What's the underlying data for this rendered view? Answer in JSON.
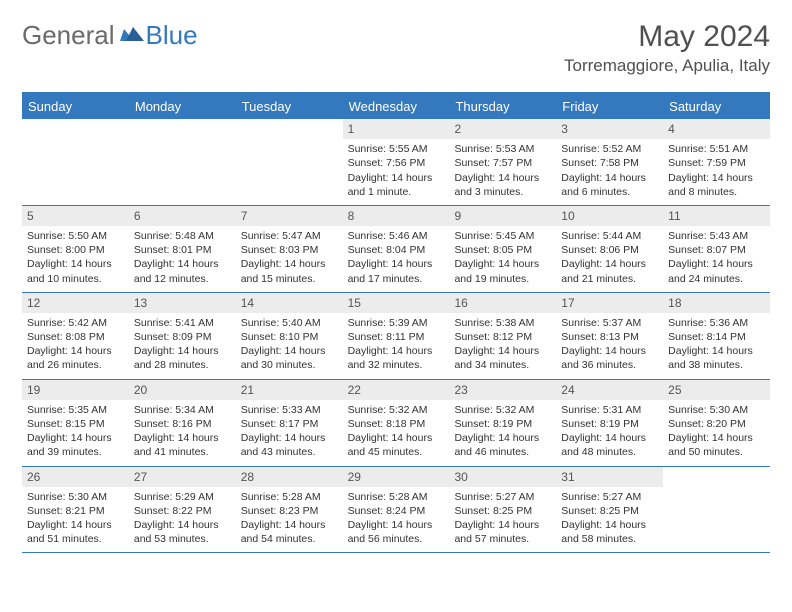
{
  "logo": {
    "general": "General",
    "blue": "Blue"
  },
  "title": "May 2024",
  "location": "Torremaggiore, Apulia, Italy",
  "colors": {
    "accent": "#3478bd",
    "header_text": "#ffffff",
    "day_num_bg": "#ececec",
    "text_gray": "#505050",
    "logo_gray": "#6a6a6a"
  },
  "day_headers": [
    "Sunday",
    "Monday",
    "Tuesday",
    "Wednesday",
    "Thursday",
    "Friday",
    "Saturday"
  ],
  "weeks": [
    [
      {
        "empty": true
      },
      {
        "empty": true
      },
      {
        "empty": true
      },
      {
        "num": "1",
        "sunrise": "Sunrise: 5:55 AM",
        "sunset": "Sunset: 7:56 PM",
        "daylight": "Daylight: 14 hours and 1 minute."
      },
      {
        "num": "2",
        "sunrise": "Sunrise: 5:53 AM",
        "sunset": "Sunset: 7:57 PM",
        "daylight": "Daylight: 14 hours and 3 minutes."
      },
      {
        "num": "3",
        "sunrise": "Sunrise: 5:52 AM",
        "sunset": "Sunset: 7:58 PM",
        "daylight": "Daylight: 14 hours and 6 minutes."
      },
      {
        "num": "4",
        "sunrise": "Sunrise: 5:51 AM",
        "sunset": "Sunset: 7:59 PM",
        "daylight": "Daylight: 14 hours and 8 minutes."
      }
    ],
    [
      {
        "num": "5",
        "sunrise": "Sunrise: 5:50 AM",
        "sunset": "Sunset: 8:00 PM",
        "daylight": "Daylight: 14 hours and 10 minutes."
      },
      {
        "num": "6",
        "sunrise": "Sunrise: 5:48 AM",
        "sunset": "Sunset: 8:01 PM",
        "daylight": "Daylight: 14 hours and 12 minutes."
      },
      {
        "num": "7",
        "sunrise": "Sunrise: 5:47 AM",
        "sunset": "Sunset: 8:03 PM",
        "daylight": "Daylight: 14 hours and 15 minutes."
      },
      {
        "num": "8",
        "sunrise": "Sunrise: 5:46 AM",
        "sunset": "Sunset: 8:04 PM",
        "daylight": "Daylight: 14 hours and 17 minutes."
      },
      {
        "num": "9",
        "sunrise": "Sunrise: 5:45 AM",
        "sunset": "Sunset: 8:05 PM",
        "daylight": "Daylight: 14 hours and 19 minutes."
      },
      {
        "num": "10",
        "sunrise": "Sunrise: 5:44 AM",
        "sunset": "Sunset: 8:06 PM",
        "daylight": "Daylight: 14 hours and 21 minutes."
      },
      {
        "num": "11",
        "sunrise": "Sunrise: 5:43 AM",
        "sunset": "Sunset: 8:07 PM",
        "daylight": "Daylight: 14 hours and 24 minutes."
      }
    ],
    [
      {
        "num": "12",
        "sunrise": "Sunrise: 5:42 AM",
        "sunset": "Sunset: 8:08 PM",
        "daylight": "Daylight: 14 hours and 26 minutes."
      },
      {
        "num": "13",
        "sunrise": "Sunrise: 5:41 AM",
        "sunset": "Sunset: 8:09 PM",
        "daylight": "Daylight: 14 hours and 28 minutes."
      },
      {
        "num": "14",
        "sunrise": "Sunrise: 5:40 AM",
        "sunset": "Sunset: 8:10 PM",
        "daylight": "Daylight: 14 hours and 30 minutes."
      },
      {
        "num": "15",
        "sunrise": "Sunrise: 5:39 AM",
        "sunset": "Sunset: 8:11 PM",
        "daylight": "Daylight: 14 hours and 32 minutes."
      },
      {
        "num": "16",
        "sunrise": "Sunrise: 5:38 AM",
        "sunset": "Sunset: 8:12 PM",
        "daylight": "Daylight: 14 hours and 34 minutes."
      },
      {
        "num": "17",
        "sunrise": "Sunrise: 5:37 AM",
        "sunset": "Sunset: 8:13 PM",
        "daylight": "Daylight: 14 hours and 36 minutes."
      },
      {
        "num": "18",
        "sunrise": "Sunrise: 5:36 AM",
        "sunset": "Sunset: 8:14 PM",
        "daylight": "Daylight: 14 hours and 38 minutes."
      }
    ],
    [
      {
        "num": "19",
        "sunrise": "Sunrise: 5:35 AM",
        "sunset": "Sunset: 8:15 PM",
        "daylight": "Daylight: 14 hours and 39 minutes."
      },
      {
        "num": "20",
        "sunrise": "Sunrise: 5:34 AM",
        "sunset": "Sunset: 8:16 PM",
        "daylight": "Daylight: 14 hours and 41 minutes."
      },
      {
        "num": "21",
        "sunrise": "Sunrise: 5:33 AM",
        "sunset": "Sunset: 8:17 PM",
        "daylight": "Daylight: 14 hours and 43 minutes."
      },
      {
        "num": "22",
        "sunrise": "Sunrise: 5:32 AM",
        "sunset": "Sunset: 8:18 PM",
        "daylight": "Daylight: 14 hours and 45 minutes."
      },
      {
        "num": "23",
        "sunrise": "Sunrise: 5:32 AM",
        "sunset": "Sunset: 8:19 PM",
        "daylight": "Daylight: 14 hours and 46 minutes."
      },
      {
        "num": "24",
        "sunrise": "Sunrise: 5:31 AM",
        "sunset": "Sunset: 8:19 PM",
        "daylight": "Daylight: 14 hours and 48 minutes."
      },
      {
        "num": "25",
        "sunrise": "Sunrise: 5:30 AM",
        "sunset": "Sunset: 8:20 PM",
        "daylight": "Daylight: 14 hours and 50 minutes."
      }
    ],
    [
      {
        "num": "26",
        "sunrise": "Sunrise: 5:30 AM",
        "sunset": "Sunset: 8:21 PM",
        "daylight": "Daylight: 14 hours and 51 minutes."
      },
      {
        "num": "27",
        "sunrise": "Sunrise: 5:29 AM",
        "sunset": "Sunset: 8:22 PM",
        "daylight": "Daylight: 14 hours and 53 minutes."
      },
      {
        "num": "28",
        "sunrise": "Sunrise: 5:28 AM",
        "sunset": "Sunset: 8:23 PM",
        "daylight": "Daylight: 14 hours and 54 minutes."
      },
      {
        "num": "29",
        "sunrise": "Sunrise: 5:28 AM",
        "sunset": "Sunset: 8:24 PM",
        "daylight": "Daylight: 14 hours and 56 minutes."
      },
      {
        "num": "30",
        "sunrise": "Sunrise: 5:27 AM",
        "sunset": "Sunset: 8:25 PM",
        "daylight": "Daylight: 14 hours and 57 minutes."
      },
      {
        "num": "31",
        "sunrise": "Sunrise: 5:27 AM",
        "sunset": "Sunset: 8:25 PM",
        "daylight": "Daylight: 14 hours and 58 minutes."
      },
      {
        "empty": true
      }
    ]
  ]
}
